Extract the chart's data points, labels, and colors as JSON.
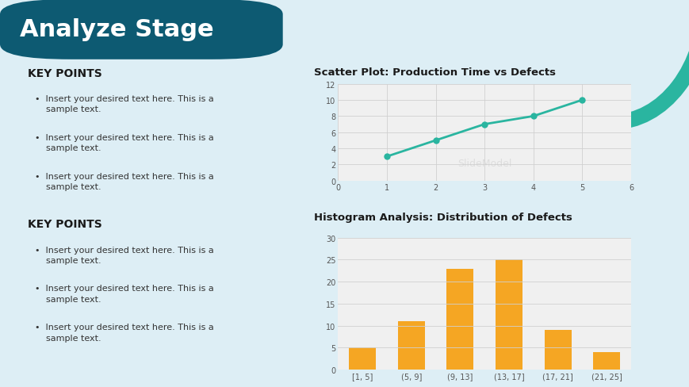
{
  "title": "Analyze Stage",
  "title_bg_dark": "#0d5a72",
  "title_bg_gradient_right": "#3a8fa8",
  "header_bg": "#4a9ab5",
  "title_text_color": "#ffffff",
  "slide_bg_color": "#ddeef5",
  "key_points_title": "KEY POINTS",
  "bullet_text": "Insert your desired text here. This is a\nsample text.",
  "scatter_title": "Scatter Plot: Production Time vs Defects",
  "scatter_x": [
    1,
    2,
    3,
    4,
    5
  ],
  "scatter_y": [
    3,
    5,
    7,
    8,
    10
  ],
  "scatter_xlim": [
    0,
    6
  ],
  "scatter_ylim": [
    0,
    12
  ],
  "scatter_xticks": [
    0,
    1,
    2,
    3,
    4,
    5,
    6
  ],
  "scatter_yticks": [
    0,
    2,
    4,
    6,
    8,
    10,
    12
  ],
  "scatter_color": "#2ab5a0",
  "hist_title": "Histogram Analysis: Distribution of Defects",
  "hist_categories": [
    "[1, 5]",
    "(5, 9]",
    "(9, 13]",
    "(13, 17]",
    "(17, 21]",
    "(21, 25]"
  ],
  "hist_values": [
    5,
    11,
    23,
    25,
    9,
    4
  ],
  "hist_color": "#f5a623",
  "hist_ylim": [
    0,
    30
  ],
  "hist_yticks": [
    0,
    5,
    10,
    15,
    20,
    25,
    30
  ],
  "chart_bg_color": "#f0f0f0",
  "chart_title_color": "#1a1a1a",
  "teal_circle_color": "#2ab5a0",
  "grid_color": "#d0d0d0",
  "watermark_color": "#cccccc"
}
